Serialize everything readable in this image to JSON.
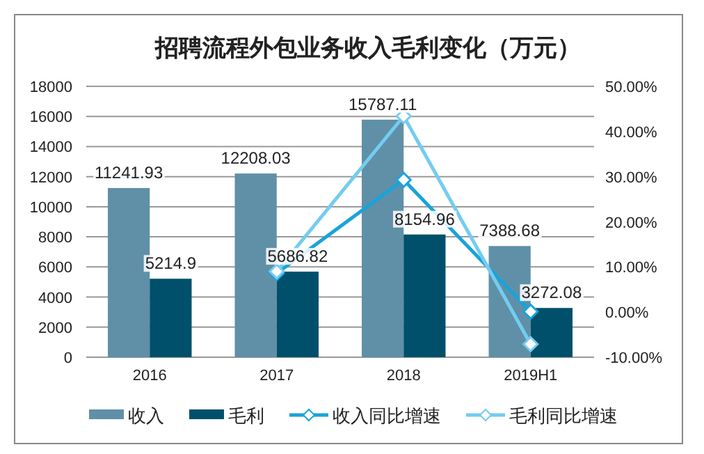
{
  "chart_data": {
    "type": "bar",
    "title": "招聘流程外包业务收入毛利变化（万元）",
    "categories": [
      "2016",
      "2017",
      "2018",
      "2019H1"
    ],
    "series": [
      {
        "name": "收入",
        "color": "#5f90a8",
        "values": [
          11241.93,
          12208.03,
          15787.11,
          7388.68
        ],
        "value_labels": [
          "11241.93",
          "12208.03",
          "15787.11",
          "7388.68"
        ]
      },
      {
        "name": "毛利",
        "color": "#00506b",
        "values": [
          5214.9,
          5686.82,
          8154.96,
          3272.08
        ],
        "value_labels": [
          "5214.9",
          "5686.82",
          "8154.96",
          "3272.08"
        ]
      },
      {
        "name": "收入同比增速",
        "type": "line",
        "axis": "y2",
        "color": "#1aa3d9",
        "values": [
          null,
          8.6,
          29.3,
          0.1
        ]
      },
      {
        "name": "毛利同比增速",
        "type": "line",
        "axis": "y2",
        "color": "#74ccf0",
        "values": [
          null,
          9.0,
          43.4,
          -7.1
        ]
      }
    ],
    "ylim": [
      0,
      18000
    ],
    "yticks": [
      0,
      2000,
      4000,
      6000,
      8000,
      10000,
      12000,
      14000,
      16000,
      18000
    ],
    "y2lim": [
      -10,
      50
    ],
    "y2ticks": [
      {
        "value": -10,
        "label": "-10.00%"
      },
      {
        "value": 0,
        "label": "0.00%"
      },
      {
        "value": 10,
        "label": "10.00%"
      },
      {
        "value": 20,
        "label": "20.00%"
      },
      {
        "value": 30,
        "label": "30.00%"
      },
      {
        "value": 40,
        "label": "40.00%"
      },
      {
        "value": 50,
        "label": "50.00%"
      }
    ],
    "grid": "y",
    "legend": "bottom",
    "marker": "diamond"
  }
}
